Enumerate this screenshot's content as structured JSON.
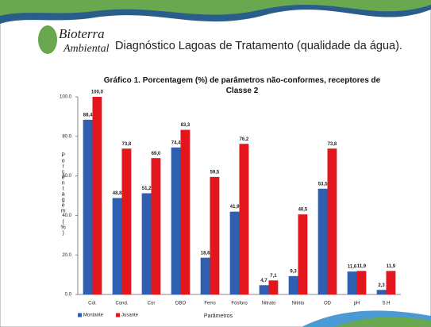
{
  "logo": {
    "line1": "Bioterra",
    "line2": "Ambiental"
  },
  "header": {
    "title": "Diagnóstico Lagoas de Tratamento (qualidade da água)."
  },
  "chart_data": {
    "type": "bar",
    "title": "Gráfico 1. Porcentagem (%) de parâmetros não-conformes, receptores de Classe 2",
    "y_label": "Porcentagem (%)",
    "x_label": "Parâmetros",
    "categories": [
      "Col.",
      "Cond.",
      "Cor",
      "DBO",
      "Ferro",
      "Fósforo",
      "Nitrato",
      "Nitrito",
      "OD",
      "pH",
      "S.H"
    ],
    "series": [
      {
        "name": "Montante",
        "color": "#2e5fb0",
        "values": [
          88.4,
          48.8,
          51.2,
          74.4,
          18.6,
          41.9,
          4.7,
          9.3,
          53.5,
          11.6,
          2.3
        ],
        "value_labels": [
          "88,4",
          "48,8",
          "51,2",
          "74,4",
          "18,6",
          "41,9",
          "4,7",
          "9,3",
          "53,5",
          "11,6",
          "2,3"
        ]
      },
      {
        "name": "Jusante",
        "color": "#e3161d",
        "values": [
          100.0,
          73.8,
          69.0,
          83.3,
          59.5,
          76.2,
          7.1,
          40.5,
          73.8,
          11.9,
          11.9
        ],
        "value_labels": [
          "100,0",
          "73,8",
          "69,0",
          "83,3",
          "59,5",
          "76,2",
          "7,1",
          "40,5",
          "73,8",
          "11,9",
          "11,9"
        ]
      }
    ],
    "ylim": [
      0,
      100
    ],
    "yticks": [
      {
        "value": 0,
        "label": "0.0"
      },
      {
        "value": 20,
        "label": "20.0"
      },
      {
        "value": 40,
        "label": "40.0"
      },
      {
        "value": 60,
        "label": "60.0"
      },
      {
        "value": 80,
        "label": "80.0"
      },
      {
        "value": 100,
        "label": "100.0"
      }
    ],
    "legend": "bottom-left"
  }
}
